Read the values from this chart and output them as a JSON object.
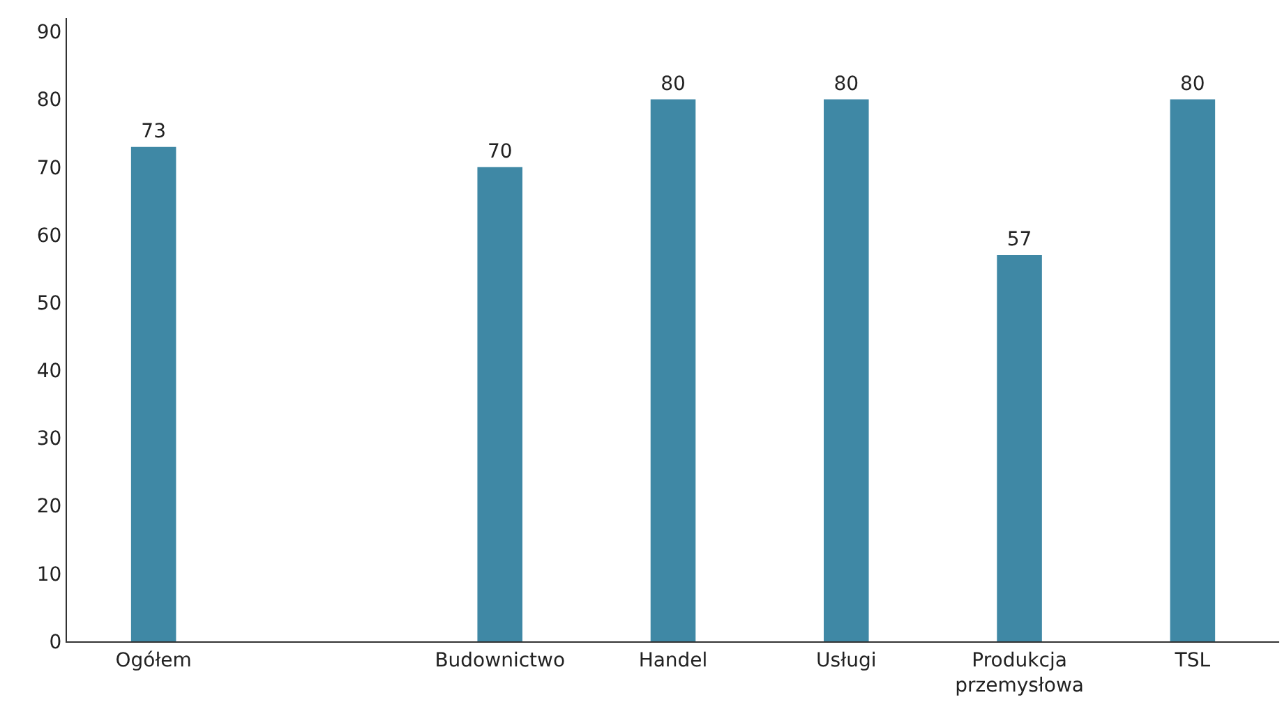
{
  "chart_data": {
    "type": "bar",
    "categories": [
      "Ogółem",
      null,
      "Budownictwo",
      "Handel",
      "Usługi",
      "Produkcja przemysłowa",
      "TSL"
    ],
    "values": [
      73,
      null,
      70,
      80,
      80,
      57,
      80
    ],
    "color": "#3f88a5",
    "data_labels": true,
    "ylim": [
      0,
      92
    ],
    "yticks": [
      0,
      10,
      20,
      30,
      40,
      50,
      60,
      70,
      80,
      90
    ]
  }
}
